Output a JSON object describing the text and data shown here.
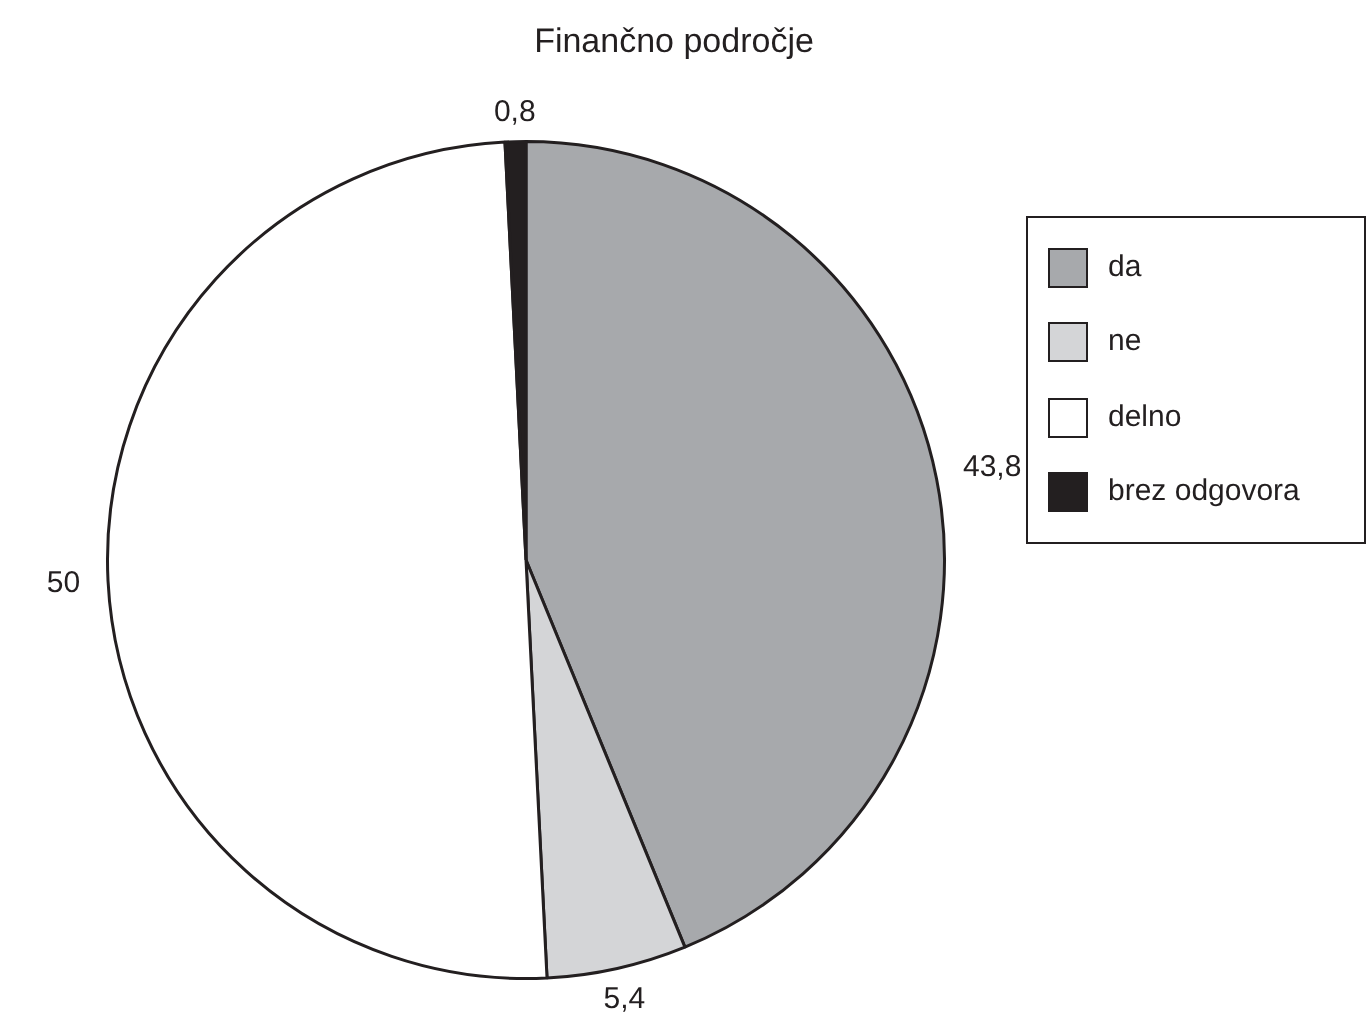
{
  "chart_data": {
    "type": "pie",
    "title": "Finančno področje",
    "categories": [
      "da",
      "ne",
      "delno",
      "brez odgovora"
    ],
    "values": [
      43.8,
      5.4,
      50,
      0.8
    ],
    "colors": [
      "#a7a9ac",
      "#d4d5d7",
      "#ffffff",
      "#231f20"
    ],
    "value_labels": [
      "43,8",
      "5,4",
      "50",
      "0,8"
    ],
    "legend": "right"
  }
}
